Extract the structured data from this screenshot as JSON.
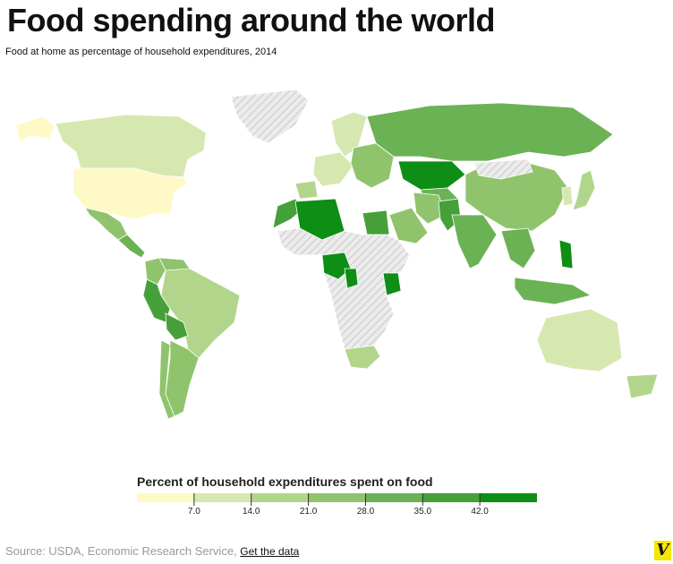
{
  "header": {
    "title": "Food spending around the world",
    "subtitle": "Food at home as percentage of household expenditures, 2014"
  },
  "legend": {
    "title": "Percent of household expenditures spent on food",
    "colors": [
      "#fff9c8",
      "#d6e8b0",
      "#b1d68b",
      "#8fc46c",
      "#6bb255",
      "#46a03a",
      "#0e8e14"
    ],
    "ticks": [
      "7.0",
      "14.0",
      "21.0",
      "28.0",
      "35.0",
      "42.0"
    ],
    "no_data_color": "#e6e6e6"
  },
  "footer": {
    "source_text": "Source: USDA, Economic Research Service,",
    "link_text": "Get the data",
    "logo_text": "V"
  },
  "map_data": {
    "regions": [
      {
        "name": "Greenland",
        "value": null
      },
      {
        "name": "Alaska",
        "value": 6.4
      },
      {
        "name": "Canada",
        "value": 9.1
      },
      {
        "name": "United States",
        "value": 6.4
      },
      {
        "name": "Mexico",
        "value": 24.0
      },
      {
        "name": "Central America",
        "value": 30.0
      },
      {
        "name": "Colombia",
        "value": 27.0
      },
      {
        "name": "Venezuela",
        "value": 23.0
      },
      {
        "name": "Brazil",
        "value": 16.0
      },
      {
        "name": "Peru",
        "value": 39.0
      },
      {
        "name": "Bolivia",
        "value": 36.0
      },
      {
        "name": "Chile",
        "value": 22.0
      },
      {
        "name": "Argentina",
        "value": 22.0
      },
      {
        "name": "Western Europe",
        "value": 10.0
      },
      {
        "name": "Scandinavia",
        "value": 12.0
      },
      {
        "name": "Iberia",
        "value": 16.0
      },
      {
        "name": "Eastern Europe",
        "value": 24.0
      },
      {
        "name": "Russia",
        "value": 31.0
      },
      {
        "name": "Kazakhstan",
        "value": 44.0
      },
      {
        "name": "Central Asia",
        "value": 32.0
      },
      {
        "name": "China",
        "value": 22.0
      },
      {
        "name": "Mongolia",
        "value": null
      },
      {
        "name": "Japan",
        "value": 14.0
      },
      {
        "name": "Korea",
        "value": 12.0
      },
      {
        "name": "Morocco",
        "value": 40.0
      },
      {
        "name": "Algeria",
        "value": 42.0
      },
      {
        "name": "Egypt",
        "value": 40.0
      },
      {
        "name": "Nigeria",
        "value": 56.0
      },
      {
        "name": "Kenya",
        "value": 46.0
      },
      {
        "name": "Cameroon",
        "value": 45.0
      },
      {
        "name": "South Africa",
        "value": 19.0
      },
      {
        "name": "Saudi Arabia",
        "value": 22.0
      },
      {
        "name": "Iran",
        "value": 25.0
      },
      {
        "name": "Pakistan",
        "value": 40.0
      },
      {
        "name": "India",
        "value": 30.0
      },
      {
        "name": "Southeast Asia",
        "value": 30.0
      },
      {
        "name": "Philippines",
        "value": 42.0
      },
      {
        "name": "Indonesia",
        "value": 33.0
      },
      {
        "name": "Australia",
        "value": 10.0
      },
      {
        "name": "New Zealand",
        "value": 16.0
      },
      {
        "name": "Sub-Saharan Africa (other)",
        "value": null
      }
    ]
  }
}
